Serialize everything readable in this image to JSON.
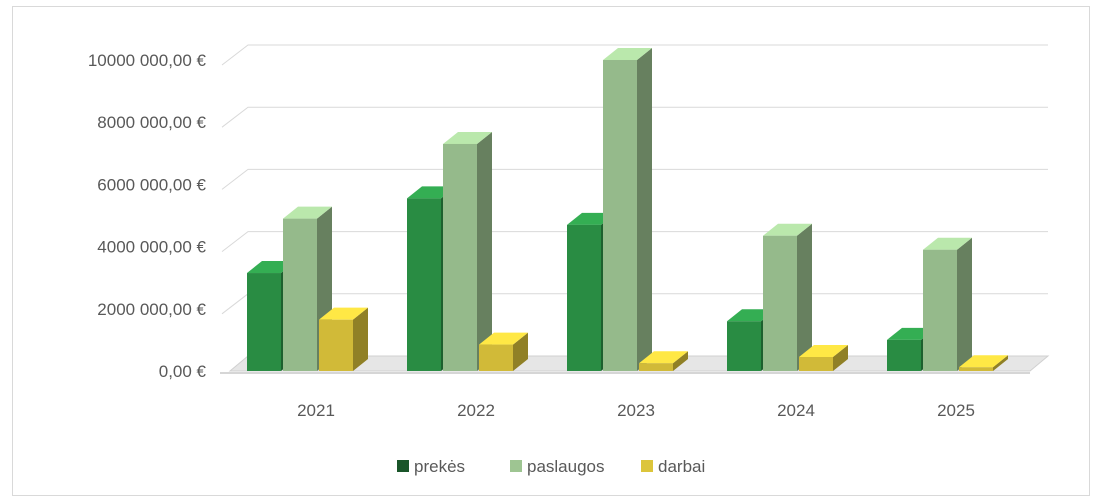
{
  "chart_data": {
    "type": "bar",
    "style": "3d-clustered-column",
    "categories": [
      "2021",
      "2022",
      "2023",
      "2024",
      "2025"
    ],
    "series": [
      {
        "name": "prekės",
        "values": [
          3150000,
          5550000,
          4700000,
          1600000,
          1000000
        ],
        "color": "#2e9b4a"
      },
      {
        "name": "paslaugos",
        "values": [
          4900000,
          7300000,
          10000000,
          4350000,
          3900000
        ],
        "color": "#a6cf9a"
      },
      {
        "name": "darbai",
        "values": [
          1650000,
          850000,
          250000,
          450000,
          120000
        ],
        "color": "#e8cf3e"
      }
    ],
    "y_ticks": [
      "0,00 €",
      "2000 000,00 €",
      "4000 000,00 €",
      "6000 000,00 €",
      "8000 000,00 €",
      "10000 000,00 €"
    ],
    "ylim": [
      0,
      10000000
    ],
    "grid": true,
    "legend_position": "bottom"
  }
}
